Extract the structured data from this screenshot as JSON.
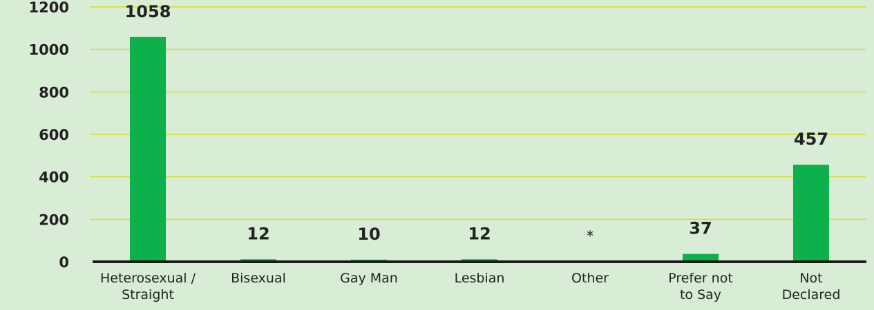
{
  "chart_data": {
    "type": "bar",
    "categories": [
      "Heterosexual / Straight",
      "Bisexual",
      "Gay Man",
      "Lesbian",
      "Other",
      "Prefer not to Say",
      "Not Declared"
    ],
    "values": [
      1058,
      12,
      10,
      12,
      null,
      37,
      457
    ],
    "value_labels": [
      "1058",
      "12",
      "10",
      "12",
      "*",
      "37",
      "457"
    ],
    "color": "#0db04b",
    "ylim": [
      0,
      1200
    ],
    "yticks": [
      0,
      200,
      400,
      600,
      800,
      1000,
      1200
    ],
    "grid": true
  }
}
